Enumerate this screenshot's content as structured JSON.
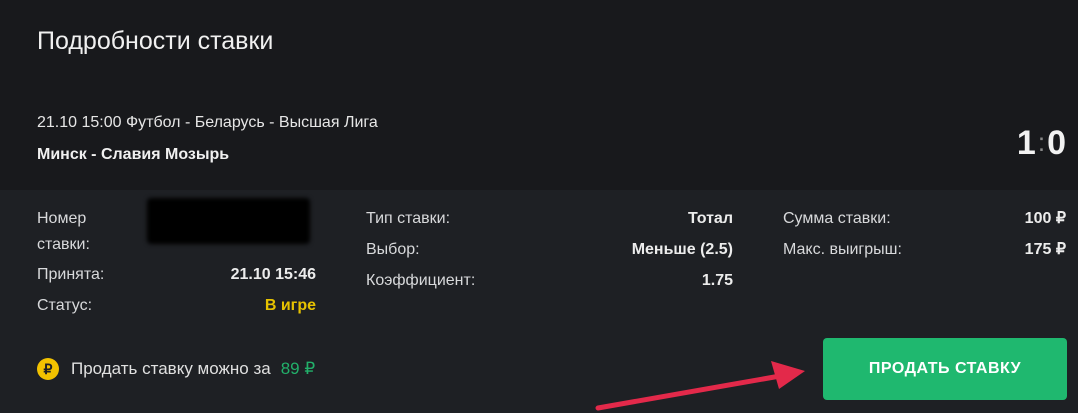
{
  "header": {
    "title": "Подробности ставки"
  },
  "event": {
    "info": "21.10 15:00 Футбол - Беларусь - Высшая Лига",
    "teams": "Минск - Славия Мозырь",
    "score_home": "1",
    "score_sep": ":",
    "score_away": "0"
  },
  "details": {
    "bet_number_label": "Номер ставки:",
    "accepted_label": "Принята:",
    "accepted_value": "21.10 15:46",
    "status_label": "Статус:",
    "status_value": "В игре",
    "type_label": "Тип ставки:",
    "type_value": "Тотал",
    "choice_label": "Выбор:",
    "choice_value": "Меньше (2.5)",
    "coef_label": "Коэффициент:",
    "coef_value": "1.75",
    "stake_label": "Сумма ставки:",
    "stake_value": "100 ₽",
    "max_win_label": "Макс. выигрыш:",
    "max_win_value": "175 ₽"
  },
  "sell": {
    "coin_icon": "ruble-coin-icon",
    "coin_glyph": "₽",
    "text": "Продать ставку можно за",
    "price": "89 ₽",
    "button": "ПРОДАТЬ СТАВКУ"
  },
  "colors": {
    "status": "#e6c200",
    "price": "#22b06a",
    "button": "#1fb86f",
    "arrow": "#e3294a"
  }
}
